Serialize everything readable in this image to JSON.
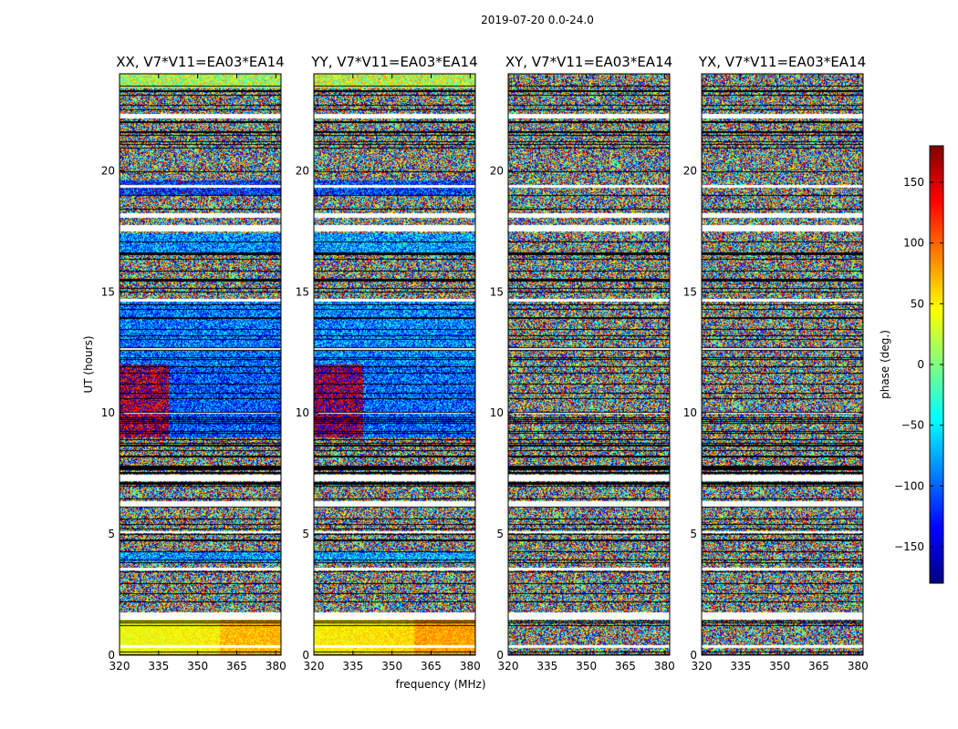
{
  "chart_data": {
    "type": "heatmap",
    "title": "2019-07-20 0.0-24.0",
    "xlabel": "frequency (MHz)",
    "ylabel": "UT (hours)",
    "xlim": [
      320,
      382
    ],
    "ylim": [
      0,
      24
    ],
    "xticks": [
      "320",
      "335",
      "350",
      "365",
      "380"
    ],
    "yticks": [
      "0",
      "5",
      "10",
      "15",
      "20"
    ],
    "panels": [
      {
        "title": "XX, V7*V11=EA03*EA14",
        "coherent": true
      },
      {
        "title": "YY, V7*V11=EA03*EA14",
        "coherent": true
      },
      {
        "title": "XY, V7*V11=EA03*EA14",
        "coherent": false
      },
      {
        "title": "YX, V7*V11=EA03*EA14",
        "coherent": false
      }
    ],
    "colorbar": {
      "label": "phase (deg.)",
      "range": [
        -180,
        180
      ],
      "ticks": [
        "150",
        "100",
        "50",
        "0",
        "−50",
        "−100",
        "−150"
      ],
      "colormap": "jet"
    }
  }
}
